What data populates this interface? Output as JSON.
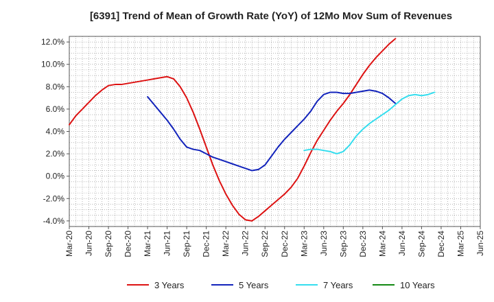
{
  "chart_data": {
    "type": "line",
    "title": "[6391]  Trend of Mean of Growth Rate (YoY) of 12Mo Mov Sum of Revenues",
    "xlabel": "",
    "ylabel": "",
    "ylim": [
      -4.5,
      12.5
    ],
    "y_ticks": [
      -4,
      -2,
      0,
      2,
      4,
      6,
      8,
      10,
      12
    ],
    "y_tick_labels": [
      "-4.0%",
      "-2.0%",
      "0.0%",
      "2.0%",
      "4.0%",
      "6.0%",
      "8.0%",
      "10.0%",
      "12.0%"
    ],
    "x_tick_labels": [
      "Mar-20",
      "Jun-20",
      "Sep-20",
      "Dec-20",
      "Mar-21",
      "Jun-21",
      "Sep-21",
      "Dec-21",
      "Mar-22",
      "Jun-22",
      "Sep-22",
      "Dec-22",
      "Mar-23",
      "Jun-23",
      "Sep-23",
      "Dec-23",
      "Mar-24",
      "Jun-24",
      "Sep-24",
      "Dec-24",
      "Mar-25",
      "Jun-25"
    ],
    "grid": true,
    "legend_position": "bottom",
    "series": [
      {
        "name": "3 Years",
        "color": "#dd1111",
        "start_index": 0,
        "values": [
          4.6,
          5.4,
          6.0,
          6.6,
          7.2,
          7.7,
          8.1,
          8.2,
          8.2,
          8.3,
          8.4,
          8.5,
          8.6,
          8.7,
          8.8,
          8.9,
          8.7,
          8.0,
          7.0,
          5.7,
          4.2,
          2.6,
          1.0,
          -0.4,
          -1.6,
          -2.6,
          -3.4,
          -3.9,
          -4.0,
          -3.6,
          -3.1,
          -2.6,
          -2.1,
          -1.6,
          -1.0,
          -0.2,
          0.9,
          2.1,
          3.2,
          4.1,
          5.0,
          5.8,
          6.5,
          7.3,
          8.2,
          9.1,
          9.9,
          10.6,
          11.2,
          11.8,
          12.3
        ]
      },
      {
        "name": "5 Years",
        "color": "#1122bb",
        "start_index": 12,
        "values": [
          7.1,
          6.4,
          5.7,
          5.0,
          4.2,
          3.3,
          2.6,
          2.4,
          2.3,
          2.0,
          1.7,
          1.5,
          1.3,
          1.1,
          0.9,
          0.7,
          0.5,
          0.6,
          1.0,
          1.8,
          2.6,
          3.3,
          3.9,
          4.5,
          5.1,
          5.8,
          6.7,
          7.3,
          7.5,
          7.5,
          7.4,
          7.4,
          7.5,
          7.6,
          7.7,
          7.6,
          7.4,
          7.0,
          6.5
        ]
      },
      {
        "name": "7 Years",
        "color": "#33ddee",
        "start_index": 36,
        "values": [
          2.3,
          2.4,
          2.4,
          2.3,
          2.2,
          2.0,
          2.2,
          2.8,
          3.6,
          4.2,
          4.7,
          5.1,
          5.5,
          5.9,
          6.4,
          6.9,
          7.2,
          7.3,
          7.2,
          7.3,
          7.5
        ]
      },
      {
        "name": "10 Years",
        "color": "#118811",
        "start_index": 0,
        "values": []
      }
    ]
  }
}
